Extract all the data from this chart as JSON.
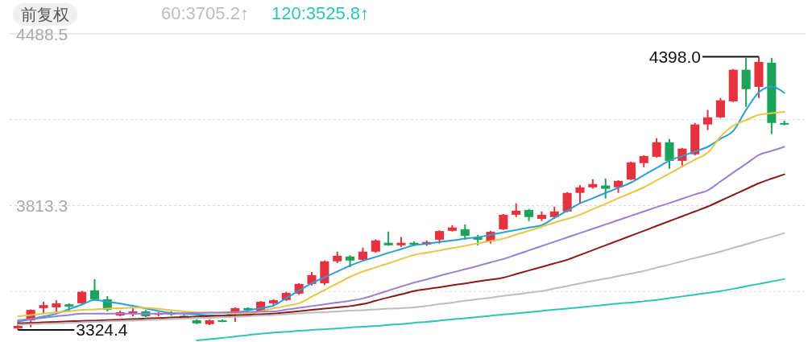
{
  "chart_data": {
    "type": "candlestick",
    "categories": [
      null,
      null,
      null,
      null,
      null,
      null,
      null,
      null,
      null,
      null,
      null,
      null,
      null,
      null,
      null,
      null,
      null,
      null,
      null,
      null,
      null,
      null,
      null,
      null,
      null,
      null,
      null,
      null,
      null,
      null,
      null,
      null,
      null,
      null,
      null,
      null,
      null,
      null,
      null,
      null,
      null,
      null,
      null,
      null,
      null,
      null,
      null,
      null,
      null,
      null,
      null,
      null,
      null,
      null,
      null,
      null,
      null,
      null,
      null,
      null,
      null
    ],
    "ohlc": [
      [
        3330,
        3345,
        3324.4,
        3340
      ],
      [
        3362,
        3405,
        3335,
        3403
      ],
      [
        3410,
        3435,
        3388,
        3422
      ],
      [
        3413,
        3441,
        3394,
        3429
      ],
      [
        3425,
        3429,
        3397,
        3416
      ],
      [
        3429,
        3478,
        3427,
        3474
      ],
      [
        3480,
        3524,
        3442,
        3445
      ],
      [
        3445,
        3457,
        3397,
        3403
      ],
      [
        3381,
        3400,
        3378,
        3394
      ],
      [
        3388,
        3410,
        3378,
        3397
      ],
      [
        3397,
        3403,
        3375,
        3378
      ],
      [
        3385,
        3395,
        3378,
        3390
      ],
      [
        3392,
        3398,
        3380,
        3384
      ],
      [
        3380,
        3384,
        3368,
        3372
      ],
      [
        3362,
        3366,
        3347,
        3350
      ],
      [
        3347,
        3365,
        3343,
        3362
      ],
      [
        3362,
        3366,
        3355,
        3360
      ],
      [
        3388,
        3413,
        3356,
        3410
      ],
      [
        3410,
        3413,
        3400,
        3403
      ],
      [
        3397,
        3438,
        3395,
        3435
      ],
      [
        3429,
        3445,
        3420,
        3441
      ],
      [
        3442,
        3474,
        3438,
        3470
      ],
      [
        3467,
        3508,
        3462,
        3505
      ],
      [
        3505,
        3552,
        3499,
        3540
      ],
      [
        3508,
        3597,
        3500,
        3594
      ],
      [
        3594,
        3632,
        3587,
        3616
      ],
      [
        3613,
        3618,
        3571,
        3597
      ],
      [
        3600,
        3648,
        3594,
        3632
      ],
      [
        3632,
        3680,
        3628,
        3676
      ],
      [
        3667,
        3711,
        3655,
        3657
      ],
      [
        3657,
        3689,
        3651,
        3667
      ],
      [
        3667,
        3672,
        3655,
        3660
      ],
      [
        3660,
        3676,
        3655,
        3670
      ],
      [
        3679,
        3716,
        3664,
        3713
      ],
      [
        3714,
        3736,
        3711,
        3727
      ],
      [
        3720,
        3739,
        3679,
        3694
      ],
      [
        3689,
        3698,
        3657,
        3679
      ],
      [
        3672,
        3714,
        3664,
        3710
      ],
      [
        3720,
        3780,
        3717,
        3777
      ],
      [
        3777,
        3822,
        3768,
        3793
      ],
      [
        3796,
        3800,
        3752,
        3768
      ],
      [
        3761,
        3790,
        3752,
        3777
      ],
      [
        3768,
        3809,
        3761,
        3790
      ],
      [
        3790,
        3866,
        3787,
        3863
      ],
      [
        3863,
        3894,
        3822,
        3885
      ],
      [
        3885,
        3917,
        3879,
        3898
      ],
      [
        3892,
        3920,
        3841,
        3879
      ],
      [
        3885,
        3913,
        3863,
        3910
      ],
      [
        3916,
        3986,
        3913,
        3983
      ],
      [
        3980,
        4011,
        3964,
        4008
      ],
      [
        4005,
        4078,
        4002,
        4062
      ],
      [
        4062,
        4075,
        3958,
        3989
      ],
      [
        3989,
        4040,
        3964,
        4037
      ],
      [
        4015,
        4138,
        4011,
        4132
      ],
      [
        4132,
        4189,
        4110,
        4160
      ],
      [
        4160,
        4236,
        4157,
        4227
      ],
      [
        4223,
        4350,
        4220,
        4347
      ],
      [
        4347,
        4394,
        4201,
        4271
      ],
      [
        4280,
        4398.0,
        4236,
        4378
      ],
      [
        4375,
        4394,
        4094,
        4138
      ],
      [
        4138,
        4147,
        4129,
        4132
      ]
    ],
    "colors": [
      "#e5323e",
      "#e5323e",
      "#e5323e",
      "#e5323e",
      "#1ba35a",
      "#e5323e",
      "#1ba35a",
      "#1ba35a",
      "#e5323e",
      "#e5323e",
      "#1ba35a",
      "#e5323e",
      "#1ba35a",
      "#1ba35a",
      "#1ba35a",
      "#e5323e",
      "#1ba35a",
      "#e5323e",
      "#1ba35a",
      "#e5323e",
      "#e5323e",
      "#e5323e",
      "#e5323e",
      "#e5323e",
      "#e5323e",
      "#e5323e",
      "#1ba35a",
      "#e5323e",
      "#e5323e",
      "#1ba35a",
      "#e5323e",
      "#1ba35a",
      "#e5323e",
      "#e5323e",
      "#e5323e",
      "#1ba35a",
      "#1ba35a",
      "#e5323e",
      "#e5323e",
      "#e5323e",
      "#1ba35a",
      "#e5323e",
      "#e5323e",
      "#e5323e",
      "#e5323e",
      "#e5323e",
      "#1ba35a",
      "#e5323e",
      "#e5323e",
      "#e5323e",
      "#e5323e",
      "#1ba35a",
      "#e5323e",
      "#e5323e",
      "#e5323e",
      "#e5323e",
      "#e5323e",
      "#1ba35a",
      "#e5323e",
      "#1ba35a",
      "#1ba35a"
    ],
    "series": [
      {
        "type": "line",
        "color": "#2a9fd6",
        "values": [
          3356,
          3367,
          3377,
          3388,
          3406,
          3424,
          3442,
          3435,
          3428,
          3419,
          3409,
          3399,
          3391,
          3388,
          3385,
          3382,
          3381,
          3391,
          3401,
          3410,
          3420,
          3449,
          3479,
          3508,
          3531,
          3554,
          3577,
          3596,
          3611,
          3627,
          3642,
          3657,
          3663,
          3670,
          3676,
          3683,
          3689,
          3698,
          3708,
          3717,
          3727,
          3736,
          3765,
          3793,
          3822,
          3842,
          3863,
          3883,
          3904,
          3933,
          3961,
          3990,
          4008,
          4026,
          4044,
          4076,
          4107,
          4189,
          4258,
          4281,
          4256
        ]
      },
      {
        "type": "line",
        "color": "#e8c547",
        "values": [
          3378,
          3383,
          3388,
          3393,
          3398,
          3403,
          3405,
          3408,
          3410,
          3412,
          3411,
          3407,
          3402,
          3397,
          3393,
          3392,
          3391,
          3389,
          3388,
          3398,
          3409,
          3419,
          3429,
          3455,
          3481,
          3507,
          3533,
          3554,
          3570,
          3586,
          3603,
          3619,
          3628,
          3637,
          3646,
          3655,
          3665,
          3674,
          3683,
          3699,
          3714,
          3730,
          3746,
          3761,
          3777,
          3799,
          3820,
          3842,
          3863,
          3885,
          3912,
          3939,
          3967,
          3994,
          4021,
          4084,
          4127,
          4149,
          4170,
          4176,
          4182
        ]
      },
      {
        "type": "line",
        "color": "#9b7fd4",
        "values": [
          3362,
          3367,
          3372,
          3378,
          3383,
          3388,
          3388,
          3388,
          3388,
          3388,
          3388,
          3388,
          3389,
          3390,
          3391,
          3392,
          3393,
          3394,
          3395,
          3396,
          3397,
          3404,
          3411,
          3418,
          3425,
          3432,
          3439,
          3448,
          3463,
          3479,
          3495,
          3510,
          3523,
          3537,
          3550,
          3563,
          3576,
          3590,
          3603,
          3620,
          3637,
          3654,
          3671,
          3688,
          3705,
          3722,
          3739,
          3756,
          3773,
          3790,
          3807,
          3823,
          3840,
          3857,
          3873,
          3908,
          3943,
          3977,
          4012,
          4028,
          4044
        ]
      },
      {
        "type": "line",
        "color": "#8b1a1a",
        "values": [
          3350,
          3352,
          3354,
          3356,
          3358,
          3360,
          3361,
          3363,
          3365,
          3367,
          3369,
          3371,
          3373,
          3375,
          3377,
          3379,
          3380,
          3382,
          3384,
          3386,
          3388,
          3393,
          3398,
          3403,
          3408,
          3413,
          3418,
          3426,
          3439,
          3452,
          3464,
          3477,
          3485,
          3492,
          3500,
          3507,
          3515,
          3522,
          3530,
          3544,
          3558,
          3572,
          3586,
          3600,
          3619,
          3638,
          3657,
          3676,
          3695,
          3714,
          3733,
          3752,
          3771,
          3790,
          3809,
          3832,
          3855,
          3878,
          3901,
          3919,
          3936
        ]
      },
      {
        "type": "line",
        "name": "60:3705.2↑",
        "color": "#bdbdbd",
        "values": [
          3345,
          3347,
          3349,
          3350,
          3352,
          3354,
          3356,
          3358,
          3360,
          3361,
          3363,
          3365,
          3367,
          3369,
          3371,
          3372,
          3374,
          3376,
          3378,
          3381,
          3383,
          3386,
          3389,
          3392,
          3394,
          3397,
          3400,
          3402,
          3405,
          3408,
          3410,
          3413,
          3419,
          3426,
          3432,
          3439,
          3445,
          3451,
          3458,
          3464,
          3471,
          3477,
          3487,
          3497,
          3507,
          3517,
          3526,
          3536,
          3546,
          3556,
          3569,
          3581,
          3594,
          3607,
          3619,
          3632,
          3647,
          3661,
          3676,
          3690,
          3705
        ]
      },
      {
        "type": "line",
        "name": "120:3525.8↑",
        "color": "#2ec4b6",
        "values": [
          null,
          null,
          null,
          null,
          null,
          null,
          null,
          null,
          null,
          null,
          null,
          null,
          null,
          null,
          3283,
          3288,
          3293,
          3298,
          3304,
          3309,
          3314,
          3317,
          3321,
          3324,
          3327,
          3330,
          3334,
          3337,
          3340,
          3344,
          3347,
          3352,
          3356,
          3361,
          3366,
          3370,
          3375,
          3380,
          3385,
          3389,
          3394,
          3399,
          3404,
          3408,
          3413,
          3418,
          3423,
          3428,
          3432,
          3437,
          3442,
          3449,
          3456,
          3463,
          3470,
          3477,
          3486,
          3496,
          3505,
          3515,
          3524
        ]
      }
    ],
    "ylim": [
      3280,
      4488.5
    ],
    "yticks": [
      4488.5,
      {
        "value": 4150.9,
        "label": null
      },
      3813.3,
      {
        "value": 3475.7,
        "label": null
      }
    ],
    "grid": "y",
    "legend": "top left",
    "tick_labels": "y",
    "annotations": [
      "前复权",
      "4398.0",
      "3324.4"
    ]
  }
}
